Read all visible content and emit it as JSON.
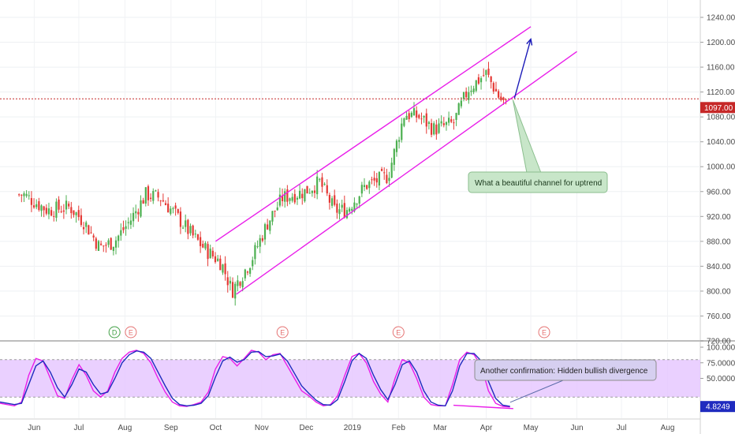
{
  "colors": {
    "up": "#4caf50",
    "down": "#e53935",
    "channel": "#e91ee9",
    "projection": "#1a1ab8",
    "last_price": "#c62828",
    "stoch_k": "#e91ee9",
    "stoch_d": "#1f2bbf",
    "stoch_band": "#e6c8ff",
    "callout_fill": "#c8e6c9",
    "callout2_fill": "#d6cff0"
  },
  "price_axis": {
    "ticks": [
      "1240.00",
      "1200.00",
      "1160.00",
      "1120.00",
      "1080.00",
      "1040.00",
      "1000.00",
      "960.00",
      "920.00",
      "880.00",
      "840.00",
      "800.00",
      "760.00",
      "720.00"
    ],
    "last_price_label": "1097.00"
  },
  "stoch_axis": {
    "ticks": [
      "100.0000",
      "75.0000",
      "50.0000"
    ],
    "last_value_label": "4.8249"
  },
  "time_axis": {
    "labels": [
      "Jun",
      "Jul",
      "Aug",
      "Sep",
      "Oct",
      "Nov",
      "Dec",
      "2019",
      "Feb",
      "Mar",
      "Apr",
      "May",
      "Jun",
      "Jul",
      "Aug"
    ]
  },
  "events": [
    "D",
    "E",
    "E",
    "E",
    "E"
  ],
  "annotations": {
    "channel_note": "What a beautiful channel for uptrend",
    "divergence_note": "Another confirmation: Hidden bullish divergence"
  },
  "chart_data": [
    {
      "type": "candlestick",
      "title": "",
      "ylim": [
        720,
        1260
      ],
      "x_range": [
        "2018-05",
        "2019-08"
      ],
      "last_price": 1097,
      "approx_close_path": [
        {
          "x": "2018-05-25",
          "y": 955
        },
        {
          "x": "2018-06-10",
          "y": 930
        },
        {
          "x": "2018-06-25",
          "y": 935
        },
        {
          "x": "2018-07-05",
          "y": 910
        },
        {
          "x": "2018-07-15",
          "y": 870
        },
        {
          "x": "2018-07-25",
          "y": 880
        },
        {
          "x": "2018-08-05",
          "y": 915
        },
        {
          "x": "2018-08-15",
          "y": 955
        },
        {
          "x": "2018-08-25",
          "y": 950
        },
        {
          "x": "2018-09-05",
          "y": 920
        },
        {
          "x": "2018-09-15",
          "y": 890
        },
        {
          "x": "2018-09-25",
          "y": 865
        },
        {
          "x": "2018-10-05",
          "y": 845
        },
        {
          "x": "2018-10-12",
          "y": 800
        },
        {
          "x": "2018-10-25",
          "y": 850
        },
        {
          "x": "2018-11-05",
          "y": 910
        },
        {
          "x": "2018-11-15",
          "y": 950
        },
        {
          "x": "2018-11-30",
          "y": 960
        },
        {
          "x": "2018-12-10",
          "y": 975
        },
        {
          "x": "2018-12-20",
          "y": 930
        },
        {
          "x": "2018-12-28",
          "y": 930
        },
        {
          "x": "2019-01-10",
          "y": 970
        },
        {
          "x": "2019-01-25",
          "y": 985
        },
        {
          "x": "2019-02-05",
          "y": 1085
        },
        {
          "x": "2019-02-15",
          "y": 1080
        },
        {
          "x": "2019-02-25",
          "y": 1060
        },
        {
          "x": "2019-03-10",
          "y": 1070
        },
        {
          "x": "2019-03-20",
          "y": 1125
        },
        {
          "x": "2019-04-01",
          "y": 1150
        },
        {
          "x": "2019-04-10",
          "y": 1110
        },
        {
          "x": "2019-04-15",
          "y": 1097
        }
      ],
      "channel": {
        "upper": [
          {
            "x": "2018-10-01",
            "y": 880
          },
          {
            "x": "2019-05-01",
            "y": 1225
          }
        ],
        "lower": [
          {
            "x": "2018-10-15",
            "y": 795
          },
          {
            "x": "2019-06-01",
            "y": 1185
          }
        ]
      },
      "projection_arrow": [
        {
          "x": "2019-04-20",
          "y": 1110
        },
        {
          "x": "2019-05-01",
          "y": 1205
        }
      ]
    },
    {
      "type": "line",
      "title": "",
      "ylim": [
        0,
        100
      ],
      "band": [
        20,
        80
      ],
      "last_value": 4.8249,
      "series": [
        {
          "name": "",
          "values": [
            10,
            8,
            6,
            12,
            55,
            82,
            78,
            50,
            22,
            18,
            48,
            72,
            55,
            30,
            20,
            30,
            60,
            82,
            92,
            95,
            90,
            75,
            50,
            28,
            12,
            6,
            5,
            8,
            12,
            28,
            65,
            85,
            82,
            70,
            82,
            95,
            92,
            80,
            88,
            90,
            70,
            50,
            30,
            22,
            12,
            6,
            8,
            22,
            55,
            85,
            90,
            75,
            45,
            25,
            12,
            50,
            80,
            75,
            50,
            20,
            8,
            6,
            6,
            40,
            80,
            92,
            88,
            70,
            30,
            10,
            5,
            4
          ]
        },
        {
          "name": "",
          "values": [
            12,
            10,
            8,
            10,
            40,
            70,
            78,
            60,
            35,
            20,
            40,
            65,
            60,
            40,
            25,
            28,
            50,
            75,
            88,
            94,
            92,
            82,
            60,
            38,
            18,
            8,
            6,
            7,
            10,
            22,
            52,
            78,
            84,
            76,
            80,
            92,
            93,
            85,
            86,
            89,
            78,
            58,
            38,
            26,
            15,
            8,
            7,
            16,
            45,
            78,
            90,
            82,
            55,
            32,
            16,
            40,
            72,
            78,
            60,
            30,
            12,
            7,
            6,
            30,
            70,
            90,
            90,
            78,
            45,
            18,
            7,
            5
          ]
        }
      ],
      "divergence_line": [
        {
          "x": "2019-03-10",
          "y": 12
        },
        {
          "x": "2019-04-15",
          "y": 4
        }
      ]
    }
  ]
}
